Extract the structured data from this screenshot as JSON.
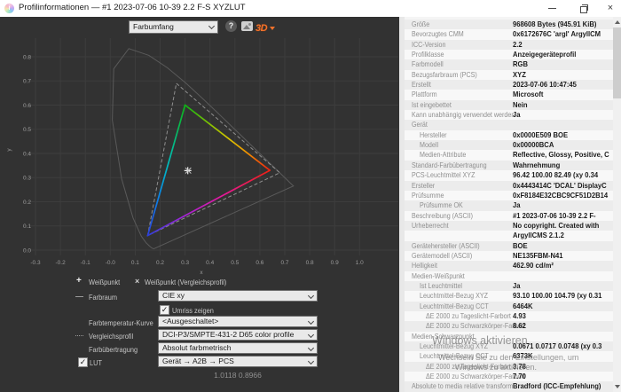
{
  "window": {
    "title": "Profilinformationen — #1 2023-07-06 10-39 2.2 F-S XYZLUT"
  },
  "toolbar": {
    "view_selector": {
      "value": "Farbumfang"
    },
    "help_label": "?",
    "plot_3d_label": "3D"
  },
  "chart_data": {
    "type": "line",
    "title": "Farbumfang (CIE xy Chromatizitätsdiagramm)",
    "xlabel": "x",
    "ylabel": "y",
    "xlim": [
      -0.35,
      1.16
    ],
    "ylim": [
      -0.02,
      0.88
    ],
    "grid": true,
    "legend_position": "bottom-left",
    "xticks": [
      "-0.3",
      "-0.2",
      "-0.1",
      "-0.0",
      "0.1",
      "0.2",
      "0.3",
      "0.4",
      "0.5",
      "0.6",
      "0.7",
      "0.8",
      "0.9",
      "1.0"
    ],
    "yticks": [
      "0.0",
      "0.1",
      "0.2",
      "0.3",
      "0.4",
      "0.5",
      "0.6",
      "0.7",
      "0.8"
    ],
    "series": [
      {
        "name": "Umriss (Spektralfarbenzug CIE xy)",
        "style": "outline",
        "closed": true,
        "points": [
          [
            0.1741,
            0.005
          ],
          [
            0.166,
            0.009
          ],
          [
            0.1566,
            0.0177
          ],
          [
            0.144,
            0.0297
          ],
          [
            0.1241,
            0.0578
          ],
          [
            0.0913,
            0.1327
          ],
          [
            0.0454,
            0.295
          ],
          [
            0.0082,
            0.5384
          ],
          [
            0.0139,
            0.7502
          ],
          [
            0.0743,
            0.8338
          ],
          [
            0.1547,
            0.8059
          ],
          [
            0.2296,
            0.7543
          ],
          [
            0.3016,
            0.6923
          ],
          [
            0.3731,
            0.6245
          ],
          [
            0.4441,
            0.5547
          ],
          [
            0.5125,
            0.4866
          ],
          [
            0.5752,
            0.4242
          ],
          [
            0.627,
            0.3725
          ],
          [
            0.6658,
            0.334
          ],
          [
            0.6915,
            0.3083
          ],
          [
            0.7079,
            0.292
          ],
          [
            0.719,
            0.2809
          ],
          [
            0.7347,
            0.2653
          ]
        ]
      },
      {
        "name": "Vergleichsprofil: DCI-P3/SMPTE-431-2 D65 color profile",
        "style": "dashed",
        "closed": true,
        "points": [
          [
            0.265,
            0.69
          ],
          [
            0.68,
            0.32
          ],
          [
            0.15,
            0.06
          ]
        ]
      },
      {
        "name": "Profil-Farbumfang (RGB-Primärfarben)",
        "style": "solid-rainbow",
        "closed": true,
        "points": [
          [
            0.3,
            0.6
          ],
          [
            0.64,
            0.33
          ],
          [
            0.15,
            0.06
          ]
        ]
      },
      {
        "name": "Weißpunkt",
        "style": "marker-plus",
        "points": [
          [
            0.311,
            0.329
          ]
        ]
      },
      {
        "name": "Weißpunkt (Vergleichsprofil)",
        "style": "marker-x",
        "points": [
          [
            0.3127,
            0.329
          ]
        ]
      }
    ]
  },
  "controls": {
    "legend": {
      "whitepoint": {
        "marker": "+",
        "label": "Weißpunkt"
      },
      "whitepoint_comparison": {
        "marker": "×",
        "label": "Weißpunkt (Vergleichsprofil)"
      }
    },
    "farbraum": {
      "label": "Farbraum",
      "value": "CIE xy"
    },
    "umriss": {
      "label": "Umriss zeigen",
      "checked": true
    },
    "farbtemperatur_kurve": {
      "label": "Farbtemperatur-Kurve",
      "value": "<Ausgeschaltet>"
    },
    "vergleichsprofil": {
      "label": "Vergleichsprofil",
      "value": "DCI-P3/SMPTE-431-2 D65 color profile"
    },
    "farbuebertragung": {
      "label": "Farbübertragung",
      "value": "Absolut farbmetrisch"
    },
    "lut": {
      "label": "LUT",
      "checked": true,
      "value": "Gerät → A2B → PCS"
    },
    "coordinates_readout": "1.0118 0.8966"
  },
  "properties": {
    "rows": [
      {
        "label": "Größe",
        "value": "968608 Bytes (945.91 KiB)",
        "indent": 0
      },
      {
        "label": "Bevorzugtes CMM",
        "value": "0x6172676C 'argl' ArgyllCM",
        "indent": 0
      },
      {
        "label": "ICC-Version",
        "value": "2.2",
        "indent": 0
      },
      {
        "label": "Profilklasse",
        "value": "Anzeigegeräteprofil",
        "indent": 0
      },
      {
        "label": "Farbmodell",
        "value": "RGB",
        "indent": 0
      },
      {
        "label": "Bezugsfarbraum (PCS)",
        "value": "XYZ",
        "indent": 0
      },
      {
        "label": "Erstellt",
        "value": "2023-07-06 10:47:45",
        "indent": 0
      },
      {
        "label": "Plattform",
        "value": "Microsoft",
        "indent": 0
      },
      {
        "label": "Ist eingebettet",
        "value": "Nein",
        "indent": 0
      },
      {
        "label": "Kann unabhängig verwendet werden",
        "value": "Ja",
        "indent": 0
      },
      {
        "label": "Gerät",
        "value": "",
        "indent": 0
      },
      {
        "label": "Hersteller",
        "value": "0x0000E509 BOE",
        "indent": 1
      },
      {
        "label": "Modell",
        "value": "0x00000BCA",
        "indent": 1
      },
      {
        "label": "Medien-Attribute",
        "value": "Reflective, Glossy, Positive, C",
        "indent": 1
      },
      {
        "label": "Standard-Farbübertragung",
        "value": "Wahrnehmung",
        "indent": 0
      },
      {
        "label": "PCS-Leuchtmittel XYZ",
        "value": "96.42 100.00  82.49 (xy 0.34",
        "indent": 0
      },
      {
        "label": "Ersteller",
        "value": "0x4443414C 'DCAL' DisplayC",
        "indent": 0
      },
      {
        "label": "Prüfsumme",
        "value": "0xF8184E32CBC9CF51D2B14",
        "indent": 0
      },
      {
        "label": "Prüfsumme OK",
        "value": "Ja",
        "indent": 1
      },
      {
        "label": "Beschreibung (ASCII)",
        "value": "#1 2023-07-06 10-39 2.2 F-",
        "indent": 0
      },
      {
        "label": "Urheberrecht",
        "value": "No copyright. Created with",
        "indent": 0
      },
      {
        "label": "",
        "value": "ArgyllCMS 2.1.2",
        "indent": 0
      },
      {
        "label": "Gerätehersteller (ASCII)",
        "value": "BOE",
        "indent": 0
      },
      {
        "label": "Gerätemodell (ASCII)",
        "value": "NE135FBM-N41",
        "indent": 0
      },
      {
        "label": "Helligkeit",
        "value": "462.90 cd/m²",
        "indent": 0
      },
      {
        "label": "Medien-Weißpunkt",
        "value": "",
        "indent": 0
      },
      {
        "label": "Ist Leuchtmittel",
        "value": "Ja",
        "indent": 1
      },
      {
        "label": "Leuchtmittel-Bezug XYZ",
        "value": "93.10 100.00 104.79 (xy 0.31",
        "indent": 1
      },
      {
        "label": "Leuchtmittel-Bezug CCT",
        "value": "6464K",
        "indent": 1
      },
      {
        "label": "ΔE 2000 zu Tageslicht-Farbort",
        "value": "4.93",
        "indent": 2
      },
      {
        "label": "ΔE 2000 zu Schwarzkörper-Farbort",
        "value": "8.62",
        "indent": 2
      },
      {
        "label": "Medien-Schwarzpunkt",
        "value": "",
        "indent": 0
      },
      {
        "label": "Leuchtmittel-Bezug XYZ",
        "value": "0.0671 0.0717 0.0748 (xy 0.3",
        "indent": 1
      },
      {
        "label": "Leuchtmittel-Bezug CCT",
        "value": "6373K",
        "indent": 1
      },
      {
        "label": "ΔE 2000 zu Tageslicht-Farbort",
        "value": "3.78",
        "indent": 2
      },
      {
        "label": "ΔE 2000 zu Schwarzkörper-Farbort",
        "value": "7.70",
        "indent": 2
      },
      {
        "label": "Absolute to media relative transform",
        "value": "Bradford (ICC-Empfehlung)",
        "indent": 0
      }
    ]
  },
  "watermark": {
    "line1": "Windows aktivieren",
    "line2": "Wechseln Sie zu den Einstellungen, um",
    "line3": "Windows zu aktivieren."
  },
  "colors": {
    "titlebar_bg": "#ffffff",
    "panel_dark": "#323232",
    "panel_light": "#f5f5f5",
    "accent_3d": "#f0722c",
    "gamut_red": "#ee2011",
    "gamut_green": "#0db514",
    "gamut_blue": "#2d3fd9"
  }
}
